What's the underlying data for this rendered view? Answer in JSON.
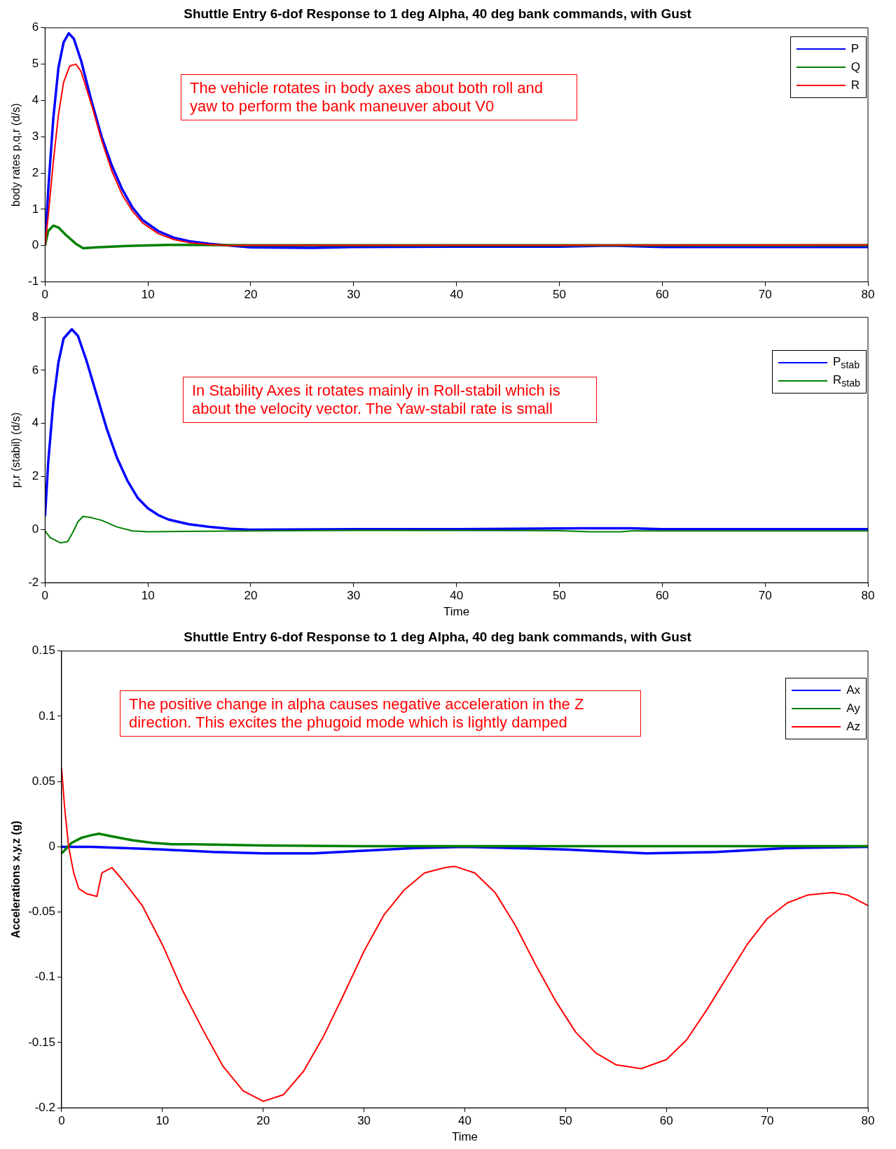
{
  "chart_data": [
    {
      "type": "line",
      "title": "Shuttle Entry 6-dof Response to 1 deg Alpha, 40 deg bank commands, with Gust",
      "ylabel": "body rates p,q,r (d/s)",
      "xlim": [
        0,
        80
      ],
      "xticks": [
        0,
        10,
        20,
        30,
        40,
        50,
        60,
        70,
        80
      ],
      "ylim": [
        -1,
        6
      ],
      "yticks": [
        -1,
        0,
        1,
        2,
        3,
        4,
        5,
        6
      ],
      "legend": "top right",
      "annotations": [
        "The vehicle rotates in body axes about both roll and yaw to perform the bank maneuver about V0"
      ],
      "series": [
        {
          "name": "P",
          "color": "#0000ff",
          "x": [
            0,
            0.3,
            0.8,
            1.3,
            1.8,
            2.3,
            2.8,
            3.5,
            4.5,
            5.5,
            6.5,
            7.5,
            8.5,
            9.5,
            11,
            12.5,
            14,
            16,
            18,
            20,
            26,
            30,
            40,
            50,
            55,
            60,
            70,
            80
          ],
          "values": [
            0,
            1.5,
            3.5,
            4.9,
            5.6,
            5.85,
            5.7,
            5.1,
            4.0,
            3.0,
            2.2,
            1.55,
            1.05,
            0.7,
            0.4,
            0.22,
            0.12,
            0.05,
            0,
            -0.05,
            -0.06,
            -0.04,
            -0.03,
            -0.03,
            0,
            -0.04,
            -0.04,
            -0.04
          ]
        },
        {
          "name": "Q",
          "color": "#008000",
          "x": [
            0,
            0.3,
            0.8,
            1.3,
            2,
            3,
            3.7,
            5,
            8,
            12,
            20,
            80
          ],
          "values": [
            0,
            0.4,
            0.55,
            0.5,
            0.3,
            0.05,
            -0.07,
            -0.05,
            -0.01,
            0.02,
            0.01,
            0.01
          ]
        },
        {
          "name": "R",
          "color": "#ff0000",
          "x": [
            0,
            0.3,
            0.8,
            1.3,
            1.8,
            2.4,
            3,
            3.5,
            4.5,
            5.5,
            6.5,
            7.5,
            8.5,
            9.5,
            11,
            12.5,
            14,
            16,
            18,
            20,
            30,
            50,
            80
          ],
          "values": [
            0,
            0.8,
            2.3,
            3.6,
            4.5,
            4.95,
            5.0,
            4.8,
            3.9,
            2.9,
            2.05,
            1.4,
            0.95,
            0.62,
            0.33,
            0.17,
            0.08,
            0.03,
            0,
            0.01,
            0.01,
            0.01,
            0.02
          ]
        }
      ]
    },
    {
      "type": "line",
      "xlabel": "Time",
      "ylabel": "p,r (stabil) (d/s)",
      "xlim": [
        0,
        80
      ],
      "xticks": [
        0,
        10,
        20,
        30,
        40,
        50,
        60,
        70,
        80
      ],
      "ylim": [
        -2,
        8
      ],
      "yticks": [
        -2,
        0,
        2,
        4,
        6,
        8
      ],
      "legend": "top right",
      "annotations": [
        "In Stability Axes it rotates mainly in Roll-stabil which is about the velocity vector. The Yaw-stabil rate is small"
      ],
      "series": [
        {
          "name": "P$_{stab}$",
          "color": "#0000ff",
          "x": [
            0,
            0.3,
            0.8,
            1.3,
            1.8,
            2.6,
            3.2,
            4,
            5,
            6,
            7,
            8,
            9,
            10,
            11,
            12,
            14,
            16,
            18,
            20,
            30,
            40,
            52,
            57,
            60,
            80
          ],
          "values": [
            0.5,
            2.5,
            4.8,
            6.3,
            7.2,
            7.55,
            7.3,
            6.4,
            5.1,
            3.8,
            2.7,
            1.85,
            1.2,
            0.8,
            0.55,
            0.38,
            0.2,
            0.1,
            0.03,
            0,
            0.02,
            0.02,
            0.05,
            0.05,
            0.02,
            0.02
          ]
        },
        {
          "name": "R$_{stab}$",
          "color": "#008000",
          "x": [
            0,
            0.5,
            1.5,
            2.2,
            2.7,
            3.2,
            3.7,
            4.5,
            5.5,
            7,
            8.5,
            10,
            20,
            30,
            50,
            53,
            56,
            57,
            80
          ],
          "values": [
            -0.05,
            -0.3,
            -0.5,
            -0.45,
            -0.1,
            0.3,
            0.5,
            0.45,
            0.35,
            0.1,
            -0.05,
            -0.08,
            -0.05,
            -0.03,
            -0.04,
            -0.08,
            -0.08,
            -0.05,
            -0.05
          ]
        }
      ]
    },
    {
      "type": "line",
      "title": "Shuttle Entry 6-dof Response to 1 deg Alpha, 40 deg bank commands, with Gust",
      "xlabel": "Time",
      "ylabel": "Accelerations x,y,z (g)",
      "xlim": [
        0,
        80
      ],
      "xticks": [
        0,
        10,
        20,
        30,
        40,
        50,
        60,
        70,
        80
      ],
      "ylim": [
        -0.2,
        0.15
      ],
      "yticks": [
        -0.2,
        -0.15,
        -0.1,
        -0.05,
        0,
        0.05,
        0.1,
        0.15
      ],
      "legend": "top right",
      "annotations": [
        "The positive change in alpha causes negative acceleration in the Z direction. This excites the phugoid mode which is lightly damped"
      ],
      "series": [
        {
          "name": "Ax",
          "color": "#0000ff",
          "x": [
            0,
            3,
            10,
            15,
            20,
            25,
            30,
            35,
            40,
            50,
            58,
            65,
            72,
            80
          ],
          "values": [
            0,
            0,
            -0.002,
            -0.004,
            -0.005,
            -0.005,
            -0.003,
            -0.001,
            0,
            -0.002,
            -0.005,
            -0.004,
            -0.001,
            0
          ]
        },
        {
          "name": "Ay",
          "color": "#008000",
          "x": [
            0,
            1,
            2,
            3,
            3.7,
            5,
            7,
            9,
            11,
            13,
            20,
            30,
            80
          ],
          "values": [
            -0.005,
            0.003,
            0.007,
            0.009,
            0.01,
            0.008,
            0.005,
            0.003,
            0.002,
            0.002,
            0.001,
            0.0005,
            0.0005
          ]
        },
        {
          "name": "Az",
          "color": "#ff0000",
          "x": [
            0,
            0.3,
            0.7,
            1.2,
            1.7,
            2.5,
            3.5,
            4,
            5,
            6,
            8,
            10,
            12,
            14,
            16,
            18,
            20,
            22,
            24,
            26,
            28,
            30,
            32,
            34,
            36,
            38,
            39,
            41,
            43,
            45,
            47,
            49,
            51,
            53,
            55,
            57.5,
            60,
            62,
            64,
            66,
            68,
            70,
            72,
            74,
            76.5,
            78,
            80
          ],
          "values": [
            0.06,
            0.03,
            0,
            -0.02,
            -0.032,
            -0.036,
            -0.038,
            -0.02,
            -0.016,
            -0.025,
            -0.045,
            -0.075,
            -0.11,
            -0.14,
            -0.168,
            -0.187,
            -0.195,
            -0.19,
            -0.172,
            -0.145,
            -0.113,
            -0.08,
            -0.052,
            -0.033,
            -0.02,
            -0.016,
            -0.015,
            -0.02,
            -0.035,
            -0.06,
            -0.09,
            -0.118,
            -0.142,
            -0.158,
            -0.167,
            -0.17,
            -0.163,
            -0.148,
            -0.125,
            -0.1,
            -0.075,
            -0.055,
            -0.043,
            -0.037,
            -0.035,
            -0.037,
            -0.045
          ]
        }
      ]
    }
  ]
}
